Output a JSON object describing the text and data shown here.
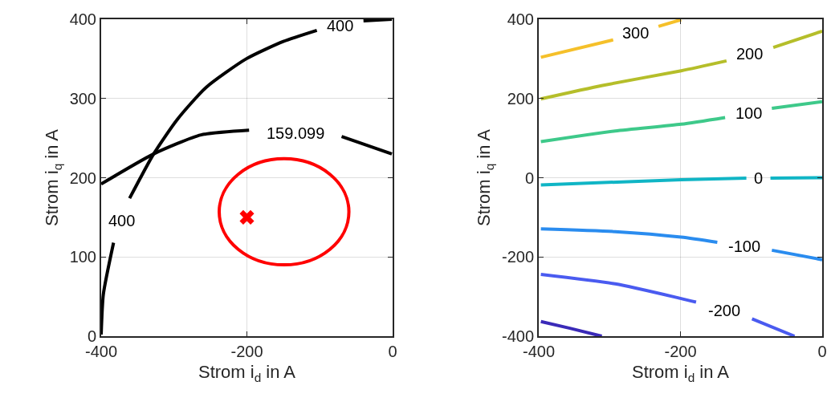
{
  "chart_data": [
    {
      "type": "line",
      "xlabel": "Strom i$_{d}$ in A",
      "ylabel": "Strom i$_{q}$ in A",
      "xlim": [
        -400,
        0
      ],
      "ylim": [
        0,
        400
      ],
      "xticks": [
        -400,
        -200,
        0
      ],
      "yticks": [
        0,
        100,
        200,
        300,
        400
      ],
      "grid": true,
      "line_style": "solid",
      "series": [
        {
          "name": "400",
          "color": "#000000",
          "x": [
            -400,
            -397,
            -383,
            null,
            -361,
            -328,
            -296,
            -256,
            -201,
            -150,
            -104,
            null,
            -40,
            -1
          ],
          "values": [
            2,
            53,
            118,
            null,
            174,
            230,
            273,
            314,
            350,
            372,
            386,
            null,
            398,
            400
          ]
        },
        {
          "name": "159.099",
          "color": "#000000",
          "x": [
            -400,
            -328,
            -263,
            -197,
            null,
            -70,
            -1
          ],
          "values": [
            192,
            230,
            254,
            260,
            null,
            252,
            230
          ]
        },
        {
          "type": "scatter",
          "marker": "cross",
          "color": "#ff0000",
          "x": [
            -200
          ],
          "values": [
            150
          ]
        }
      ]
    },
    {
      "type": "line",
      "xlabel": "Strom i$_{d}$ in A",
      "ylabel": "Strom i$_{q}$ in A",
      "xlim": [
        -400,
        0
      ],
      "ylim": [
        -400,
        400
      ],
      "xticks": [
        -400,
        -200,
        0
      ],
      "yticks": [
        -400,
        -200,
        0,
        200,
        400
      ],
      "grid": true,
      "line_style": "solid",
      "series": [
        {
          "name": "300",
          "color": "#f5c02a",
          "x": [
            -397,
            -295,
            null,
            -231,
            -199
          ],
          "values": [
            304,
            348,
            null,
            382,
            399
          ]
        },
        {
          "name": "200",
          "color": "#b5be2a",
          "x": [
            -397,
            -310,
            -199,
            -135,
            null,
            -69,
            0
          ],
          "values": [
            199,
            233,
            270,
            295,
            null,
            329,
            370
          ]
        },
        {
          "name": "100",
          "color": "#3ec98a",
          "x": [
            -397,
            -292,
            -199,
            -137,
            null,
            -71,
            0
          ],
          "values": [
            91,
            118,
            135,
            152,
            null,
            175,
            192
          ]
        },
        {
          "name": "0",
          "color": "#10b5c5",
          "x": [
            -397,
            -199,
            -107,
            null,
            -73,
            0
          ],
          "values": [
            -18,
            -5,
            -1,
            null,
            -1,
            0
          ]
        },
        {
          "name": "-100",
          "color": "#2a8cef",
          "x": [
            -397,
            -292,
            -199,
            -148,
            null,
            -71,
            0
          ],
          "values": [
            -129,
            -136,
            -150,
            -163,
            null,
            -183,
            -207
          ]
        },
        {
          "name": "-200",
          "color": "#4a5bf0",
          "x": [
            -397,
            -292,
            -199,
            -178,
            null,
            -99,
            -39
          ],
          "values": [
            -244,
            -268,
            -305,
            -314,
            null,
            -356,
            -400
          ]
        },
        {
          "color": "#3a2ab8",
          "x": [
            -397,
            -356,
            -311
          ],
          "values": [
            -363,
            -380,
            -400
          ]
        }
      ]
    }
  ]
}
